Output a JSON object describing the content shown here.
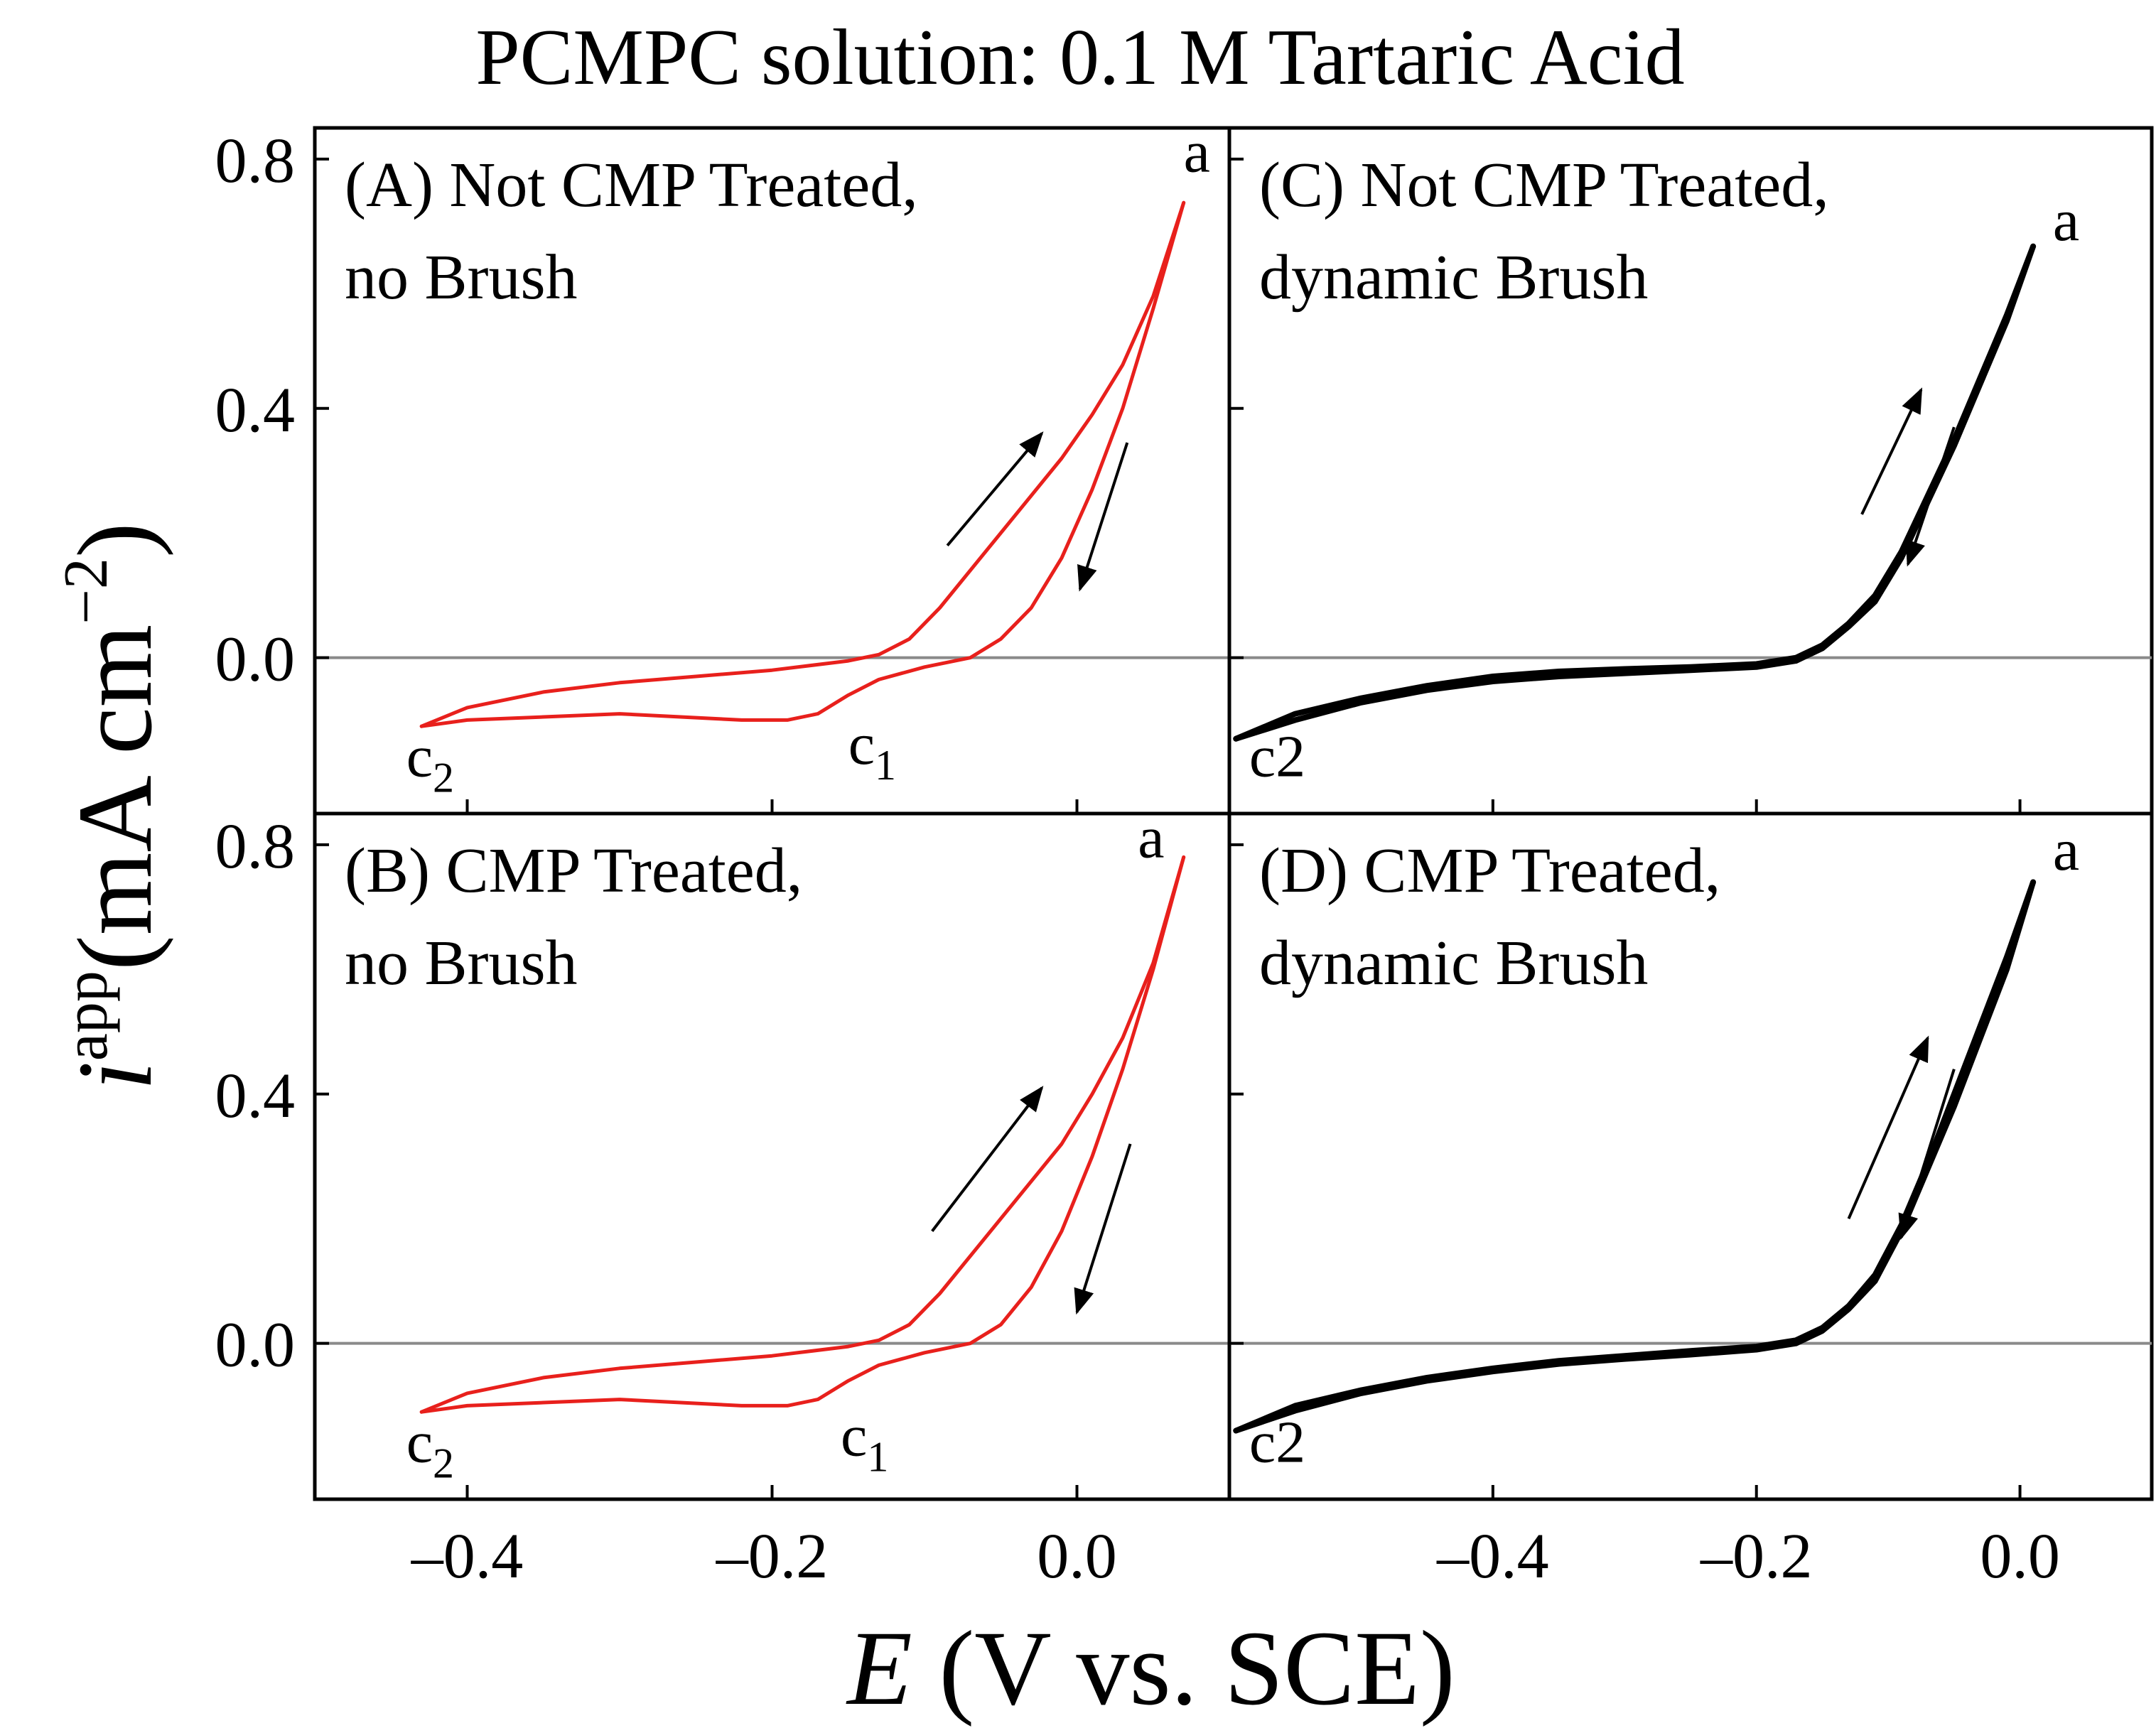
{
  "figure": {
    "title": "PCMPC solution: 0.1 M Tartaric Acid",
    "ylabel_italic": "i",
    "ylabel_sup": "app",
    "ylabel_unit": "(mA cm",
    "ylabel_exp": "−2",
    "ylabel_close": ")",
    "xlabel_italic": "E",
    "xlabel_rest": " (V vs. SCE)",
    "colors": {
      "red": "#e8201c",
      "black": "#000000",
      "zero_line": "#8a8a8a",
      "axes": "#000000"
    }
  },
  "chart_data": [
    {
      "id": "A",
      "type": "line",
      "label_line1": "(A) Not CMP Treated,",
      "label_line2": "no Brush",
      "color": "red",
      "xlim": [
        -0.5,
        0.1
      ],
      "ylim": [
        -0.25,
        0.85
      ],
      "xticks": [
        -0.4,
        -0.2,
        0.0
      ],
      "yticks": [
        0.0,
        0.4,
        0.8
      ],
      "ytick_labels": [
        "0.0",
        "0.4",
        "0.8"
      ],
      "series": [
        {
          "name": "forward scan",
          "x": [
            -0.43,
            -0.4,
            -0.35,
            -0.3,
            -0.25,
            -0.2,
            -0.15,
            -0.13,
            -0.11,
            -0.09,
            -0.07,
            -0.05,
            -0.03,
            -0.01,
            0.01,
            0.03,
            0.05,
            0.07
          ],
          "y": [
            -0.11,
            -0.08,
            -0.055,
            -0.04,
            -0.03,
            -0.02,
            -0.005,
            0.005,
            0.03,
            0.08,
            0.14,
            0.2,
            0.26,
            0.32,
            0.39,
            0.47,
            0.58,
            0.73
          ]
        },
        {
          "name": "reverse scan",
          "x": [
            0.07,
            0.05,
            0.03,
            0.01,
            -0.01,
            -0.03,
            -0.05,
            -0.07,
            -0.1,
            -0.13,
            -0.15,
            -0.17,
            -0.19,
            -0.22,
            -0.26,
            -0.3,
            -0.35,
            -0.4,
            -0.43
          ],
          "y": [
            0.73,
            0.56,
            0.4,
            0.27,
            0.16,
            0.08,
            0.03,
            0.0,
            -0.015,
            -0.035,
            -0.06,
            -0.09,
            -0.1,
            -0.1,
            -0.095,
            -0.09,
            -0.095,
            -0.1,
            -0.11
          ]
        }
      ],
      "peak_labels": [
        {
          "text": "a",
          "x": 0.07,
          "y": 0.78
        },
        {
          "text": "c",
          "sub": "2",
          "x": -0.44,
          "y": -0.19
        },
        {
          "text": "c",
          "sub": "1",
          "x": -0.15,
          "y": -0.17
        }
      ],
      "arrows": [
        {
          "from": [
            -0.085,
            0.18
          ],
          "to": [
            -0.023,
            0.36
          ],
          "label": "forward"
        },
        {
          "from": [
            0.033,
            0.345
          ],
          "to": [
            0.002,
            0.11
          ],
          "label": "reverse"
        }
      ]
    },
    {
      "id": "B",
      "type": "line",
      "label_line1": "(B) CMP Treated,",
      "label_line2": "no Brush",
      "color": "red",
      "xlim": [
        -0.5,
        0.1
      ],
      "ylim": [
        -0.25,
        0.85
      ],
      "xticks": [
        -0.4,
        -0.2,
        0.0
      ],
      "yticks": [
        0.0,
        0.4,
        0.8
      ],
      "ytick_labels": [
        "0.0",
        "0.4",
        "0.8"
      ],
      "series": [
        {
          "name": "forward scan",
          "x": [
            -0.43,
            -0.4,
            -0.35,
            -0.3,
            -0.25,
            -0.2,
            -0.15,
            -0.13,
            -0.11,
            -0.09,
            -0.07,
            -0.05,
            -0.03,
            -0.01,
            0.01,
            0.03,
            0.05,
            0.07
          ],
          "y": [
            -0.11,
            -0.08,
            -0.055,
            -0.04,
            -0.03,
            -0.02,
            -0.005,
            0.005,
            0.03,
            0.08,
            0.14,
            0.2,
            0.26,
            0.32,
            0.4,
            0.49,
            0.61,
            0.78
          ]
        },
        {
          "name": "reverse scan",
          "x": [
            0.07,
            0.05,
            0.03,
            0.01,
            -0.01,
            -0.03,
            -0.05,
            -0.07,
            -0.1,
            -0.13,
            -0.15,
            -0.17,
            -0.19,
            -0.22,
            -0.26,
            -0.3,
            -0.35,
            -0.4,
            -0.43
          ],
          "y": [
            0.78,
            0.6,
            0.44,
            0.3,
            0.18,
            0.09,
            0.03,
            0.0,
            -0.015,
            -0.035,
            -0.06,
            -0.09,
            -0.1,
            -0.1,
            -0.095,
            -0.09,
            -0.095,
            -0.1,
            -0.11
          ]
        }
      ],
      "peak_labels": [
        {
          "text": "a",
          "x": 0.04,
          "y": 0.78
        },
        {
          "text": "c",
          "sub": "2",
          "x": -0.44,
          "y": -0.19
        },
        {
          "text": "c",
          "sub": "1",
          "x": -0.155,
          "y": -0.18
        }
      ],
      "arrows": [
        {
          "from": [
            -0.095,
            0.18
          ],
          "to": [
            -0.023,
            0.41
          ],
          "label": "forward"
        },
        {
          "from": [
            0.035,
            0.32
          ],
          "to": [
            0.0,
            0.05
          ],
          "label": "reverse"
        }
      ]
    },
    {
      "id": "C",
      "type": "line",
      "label_line1": "(C) Not CMP Treated,",
      "label_line2": "dynamic Brush",
      "color": "black",
      "xlim": [
        -0.6,
        0.1
      ],
      "ylim": [
        -0.25,
        0.85
      ],
      "xticks": [
        -0.4,
        -0.2,
        0.0
      ],
      "yticks": [
        0.0,
        0.4,
        0.8
      ],
      "ytick_labels": [
        "0.0",
        "0.4",
        "0.8"
      ],
      "series": [
        {
          "name": "forward scan",
          "x": [
            -0.595,
            -0.55,
            -0.5,
            -0.45,
            -0.4,
            -0.35,
            -0.3,
            -0.25,
            -0.2,
            -0.17,
            -0.15,
            -0.13,
            -0.11,
            -0.09,
            -0.07,
            -0.05,
            -0.03,
            -0.01,
            0.01
          ],
          "y": [
            -0.13,
            -0.09,
            -0.065,
            -0.045,
            -0.03,
            -0.022,
            -0.018,
            -0.015,
            -0.01,
            0.0,
            0.02,
            0.055,
            0.1,
            0.17,
            0.26,
            0.35,
            0.45,
            0.55,
            0.66
          ]
        },
        {
          "name": "reverse scan",
          "x": [
            0.01,
            -0.01,
            -0.03,
            -0.05,
            -0.07,
            -0.09,
            -0.11,
            -0.13,
            -0.15,
            -0.17,
            -0.2,
            -0.25,
            -0.3,
            -0.35,
            -0.4,
            -0.45,
            -0.5,
            -0.55,
            -0.595
          ],
          "y": [
            0.66,
            0.54,
            0.44,
            0.34,
            0.25,
            0.16,
            0.09,
            0.05,
            0.015,
            -0.005,
            -0.015,
            -0.02,
            -0.025,
            -0.03,
            -0.038,
            -0.052,
            -0.072,
            -0.1,
            -0.13
          ]
        }
      ],
      "peak_labels": [
        {
          "text": "a",
          "x": 0.025,
          "y": 0.67
        },
        {
          "text": "c2",
          "x": -0.585,
          "y": -0.19
        }
      ],
      "arrows": [
        {
          "from": [
            -0.12,
            0.23
          ],
          "to": [
            -0.075,
            0.43
          ],
          "label": "forward"
        },
        {
          "from": [
            -0.05,
            0.37
          ],
          "to": [
            -0.085,
            0.15
          ],
          "label": "reverse"
        }
      ]
    },
    {
      "id": "D",
      "type": "line",
      "label_line1": "(D) CMP Treated,",
      "label_line2": "dynamic Brush",
      "color": "black",
      "xlim": [
        -0.6,
        0.1
      ],
      "ylim": [
        -0.25,
        0.85
      ],
      "xticks": [
        -0.4,
        -0.2,
        0.0
      ],
      "yticks": [
        0.0,
        0.4,
        0.8
      ],
      "ytick_labels": [
        "0.0",
        "0.4",
        "0.8"
      ],
      "series": [
        {
          "name": "forward scan",
          "x": [
            -0.595,
            -0.55,
            -0.5,
            -0.45,
            -0.4,
            -0.35,
            -0.3,
            -0.25,
            -0.2,
            -0.17,
            -0.15,
            -0.13,
            -0.11,
            -0.09,
            -0.07,
            -0.05,
            -0.03,
            -0.01,
            0.01
          ],
          "y": [
            -0.14,
            -0.1,
            -0.075,
            -0.055,
            -0.04,
            -0.028,
            -0.02,
            -0.012,
            -0.005,
            0.005,
            0.025,
            0.06,
            0.11,
            0.19,
            0.29,
            0.4,
            0.51,
            0.62,
            0.74
          ]
        },
        {
          "name": "reverse scan",
          "x": [
            0.01,
            -0.01,
            -0.03,
            -0.05,
            -0.07,
            -0.09,
            -0.11,
            -0.13,
            -0.15,
            -0.17,
            -0.2,
            -0.25,
            -0.3,
            -0.35,
            -0.4,
            -0.45,
            -0.5,
            -0.55,
            -0.595
          ],
          "y": [
            0.74,
            0.6,
            0.49,
            0.38,
            0.28,
            0.18,
            0.1,
            0.055,
            0.02,
            0.0,
            -0.01,
            -0.018,
            -0.025,
            -0.033,
            -0.045,
            -0.06,
            -0.08,
            -0.108,
            -0.14
          ]
        }
      ],
      "peak_labels": [
        {
          "text": "a",
          "x": 0.025,
          "y": 0.76
        },
        {
          "text": "c2",
          "x": -0.585,
          "y": -0.19
        }
      ],
      "arrows": [
        {
          "from": [
            -0.13,
            0.2
          ],
          "to": [
            -0.07,
            0.49
          ],
          "label": "forward"
        },
        {
          "from": [
            -0.05,
            0.44
          ],
          "to": [
            -0.09,
            0.17
          ],
          "label": "reverse"
        }
      ]
    }
  ]
}
